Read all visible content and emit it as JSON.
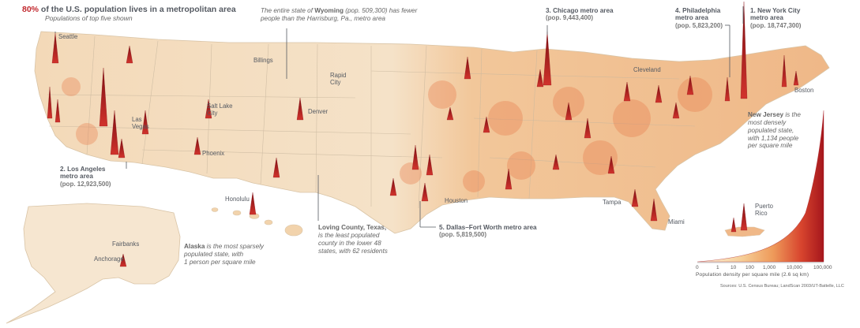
{
  "headline": {
    "highlight": "80%",
    "rest": " of the U.S. population lives in a metropolitan area"
  },
  "subhead": "Populations of top five shown",
  "wyoming_note": {
    "pre": "The entire state of ",
    "state": "Wyoming",
    "post": " (pop. 509,300) has fewer people than the Harrisburg, Pa., metro area"
  },
  "metros": {
    "chicago": {
      "label": "3. Chicago metro area",
      "pop": "(pop. 9,443,400)"
    },
    "philadelphia": {
      "label1": "4. Philadelphia",
      "label2": "metro area",
      "pop": "(pop. 5,823,200)"
    },
    "new_york": {
      "label1": "1. New York City",
      "label2": "metro area",
      "pop": "(pop. 18,747,300)"
    },
    "los_angeles": {
      "label1": "2. Los Angeles",
      "label2": "metro area",
      "pop": "(pop. 12,923,500)"
    },
    "dallas": {
      "label": "5. Dallas–Fort Worth metro area",
      "pop": "(pop. 5,819,500)"
    }
  },
  "new_jersey_note": {
    "state": "New Jersey",
    "rest1": " is the",
    "rest2": "most densely",
    "rest3": "populated state,",
    "rest4": "with 1,134 people",
    "rest5": "per square mile"
  },
  "alaska_note": {
    "state": "Alaska",
    "rest1": " is the most sparsely",
    "rest2": "populated state, with",
    "rest3": "1 person per square mile"
  },
  "loving_note": {
    "title": "Loving County, Texas,",
    "l1": "is the least populated",
    "l2": "county in the lower 48",
    "l3": "states, with 62 residents"
  },
  "cities": {
    "seattle": "Seattle",
    "billings": "Billings",
    "rapid": "Rapid",
    "city": "City",
    "salt_lake": "Salt Lake",
    "salt_city": "City",
    "las": "Las",
    "vegas": "Vegas",
    "denver": "Denver",
    "phoenix": "Phoenix",
    "cleveland": "Cleveland",
    "boston": "Boston",
    "houston": "Houston",
    "tampa": "Tampa",
    "miami": "Miami",
    "honolulu": "Honolulu",
    "fairbanks": "Fairbanks",
    "anchorage": "Anchorage",
    "puerto": "Puerto",
    "rico": "Rico"
  },
  "legend": {
    "title": "Population density per square mile (2.6 sq km)",
    "ticks": [
      "0",
      "1",
      "10",
      "100",
      "1,000",
      "10,000",
      "100,000"
    ]
  },
  "source": "Sources: U.S. Census Bureau; LandScan 2003/UT-Battelle, LLC",
  "colors": {
    "accent": "#c1272d",
    "land_light": "#f6e3c9",
    "land_mid": "#f0b27a",
    "spike": "#b81d24"
  }
}
